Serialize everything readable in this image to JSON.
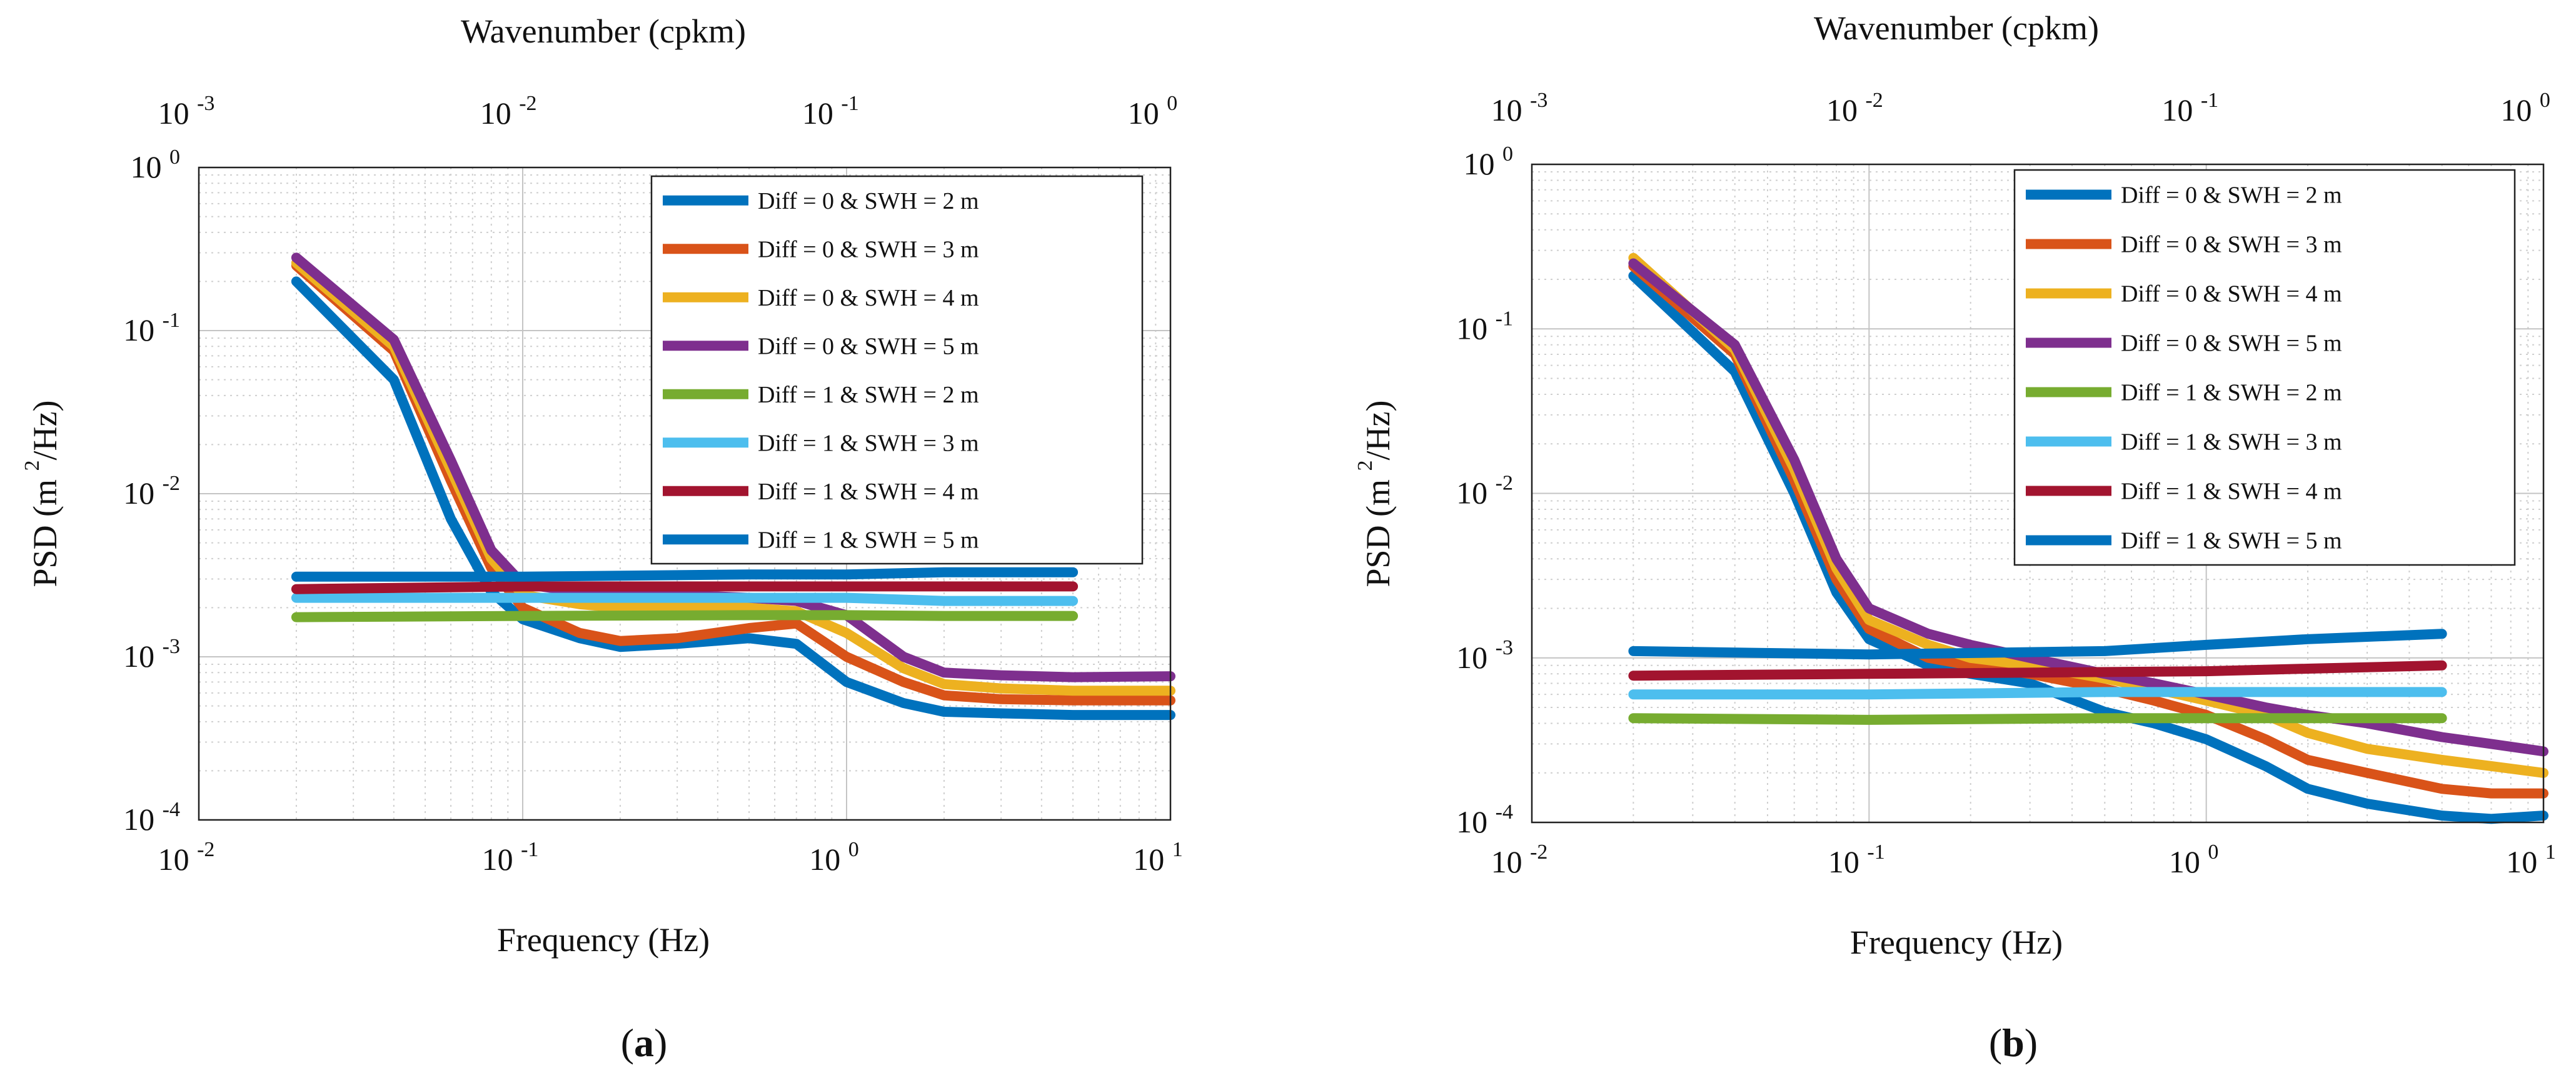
{
  "figure": {
    "panel_labels": [
      {
        "open": "(",
        "letter": "a",
        "close": ")"
      },
      {
        "open": "(",
        "letter": "b",
        "close": ")"
      }
    ]
  },
  "chart_data": [
    {
      "type": "line",
      "panel": "a",
      "xscale": "log",
      "yscale": "log",
      "xlabel": "Frequency (Hz)",
      "ylabel": "PSD (m 2 /Hz)",
      "ylabel_parts": {
        "main": "PSD (m",
        "sup": "2",
        "tail": "/Hz)"
      },
      "top_xlabel": "Wavenumber (cpkm)",
      "xlim": [
        0.01,
        10
      ],
      "ylim": [
        0.0001,
        1
      ],
      "grid": true,
      "x_ticks": [
        {
          "base": "10",
          "exp": "-2"
        },
        {
          "base": "10",
          "exp": "-1"
        },
        {
          "base": "10",
          "exp": "0"
        },
        {
          "base": "10",
          "exp": "1"
        }
      ],
      "y_ticks": [
        {
          "base": "10",
          "exp": "-4"
        },
        {
          "base": "10",
          "exp": "-3"
        },
        {
          "base": "10",
          "exp": "-2"
        },
        {
          "base": "10",
          "exp": "-1"
        },
        {
          "base": "10",
          "exp": "0"
        }
      ],
      "top_ticks": [
        {
          "base": "10",
          "exp": "-3"
        },
        {
          "base": "10",
          "exp": "-2"
        },
        {
          "base": "10",
          "exp": "-1"
        },
        {
          "base": "10",
          "exp": "0"
        }
      ],
      "legend_position": "top-right",
      "series": [
        {
          "name": "Diff = 0 & SWH = 2 m",
          "color": "#0072BD",
          "points": [
            [
              0.02,
              0.2
            ],
            [
              0.04,
              0.05
            ],
            [
              0.06,
              0.007
            ],
            [
              0.08,
              0.0025
            ],
            [
              0.1,
              0.0017
            ],
            [
              0.15,
              0.0013
            ],
            [
              0.2,
              0.00115
            ],
            [
              0.3,
              0.0012
            ],
            [
              0.5,
              0.0013
            ],
            [
              0.7,
              0.0012
            ],
            [
              1,
              0.0007
            ],
            [
              1.5,
              0.00052
            ],
            [
              2,
              0.00046
            ],
            [
              3,
              0.00045
            ],
            [
              5,
              0.00044
            ],
            [
              10,
              0.00044
            ]
          ]
        },
        {
          "name": "Diff = 0 & SWH = 3 m",
          "color": "#D95319",
          "points": [
            [
              0.02,
              0.25
            ],
            [
              0.04,
              0.075
            ],
            [
              0.06,
              0.012
            ],
            [
              0.08,
              0.0035
            ],
            [
              0.1,
              0.002
            ],
            [
              0.15,
              0.0014
            ],
            [
              0.2,
              0.00125
            ],
            [
              0.3,
              0.0013
            ],
            [
              0.5,
              0.0015
            ],
            [
              0.7,
              0.0016
            ],
            [
              1,
              0.001
            ],
            [
              1.5,
              0.0007
            ],
            [
              2,
              0.00058
            ],
            [
              3,
              0.00055
            ],
            [
              5,
              0.00054
            ],
            [
              10,
              0.00054
            ]
          ]
        },
        {
          "name": "Diff = 0 & SWH = 4 m",
          "color": "#EDB120",
          "points": [
            [
              0.02,
              0.26
            ],
            [
              0.04,
              0.08
            ],
            [
              0.06,
              0.014
            ],
            [
              0.08,
              0.004
            ],
            [
              0.1,
              0.0024
            ],
            [
              0.15,
              0.0021
            ],
            [
              0.2,
              0.002
            ],
            [
              0.3,
              0.002
            ],
            [
              0.5,
              0.002
            ],
            [
              0.7,
              0.0019
            ],
            [
              1,
              0.0014
            ],
            [
              1.5,
              0.00085
            ],
            [
              2,
              0.00068
            ],
            [
              3,
              0.00064
            ],
            [
              5,
              0.00062
            ],
            [
              10,
              0.00062
            ]
          ]
        },
        {
          "name": "Diff = 0 & SWH = 5 m",
          "color": "#7E2F8E",
          "points": [
            [
              0.02,
              0.28
            ],
            [
              0.04,
              0.088
            ],
            [
              0.06,
              0.016
            ],
            [
              0.08,
              0.0045
            ],
            [
              0.1,
              0.0028
            ],
            [
              0.15,
              0.0025
            ],
            [
              0.2,
              0.0024
            ],
            [
              0.3,
              0.0024
            ],
            [
              0.5,
              0.0023
            ],
            [
              0.7,
              0.0022
            ],
            [
              1,
              0.0018
            ],
            [
              1.5,
              0.001
            ],
            [
              2,
              0.0008
            ],
            [
              3,
              0.00077
            ],
            [
              5,
              0.00075
            ],
            [
              10,
              0.00076
            ]
          ]
        },
        {
          "name": "Diff = 1 & SWH = 2 m",
          "color": "#77AC30",
          "points": [
            [
              0.02,
              0.00175
            ],
            [
              0.1,
              0.00178
            ],
            [
              0.5,
              0.0018
            ],
            [
              1,
              0.0018
            ],
            [
              2,
              0.00178
            ],
            [
              5,
              0.00178
            ]
          ]
        },
        {
          "name": "Diff = 1 & SWH = 3 m",
          "color": "#4DBEEE",
          "points": [
            [
              0.02,
              0.0023
            ],
            [
              0.1,
              0.0023
            ],
            [
              0.5,
              0.0023
            ],
            [
              1,
              0.0023
            ],
            [
              2,
              0.0022
            ],
            [
              5,
              0.0022
            ]
          ]
        },
        {
          "name": "Diff = 1 & SWH = 4 m",
          "color": "#A2142F",
          "points": [
            [
              0.02,
              0.0026
            ],
            [
              0.1,
              0.0027
            ],
            [
              0.5,
              0.0027
            ],
            [
              1,
              0.0027
            ],
            [
              2,
              0.0027
            ],
            [
              5,
              0.0027
            ]
          ]
        },
        {
          "name": "Diff = 1 & SWH = 5 m",
          "color": "#0072BD",
          "points": [
            [
              0.02,
              0.0031
            ],
            [
              0.1,
              0.0031
            ],
            [
              0.5,
              0.0032
            ],
            [
              1,
              0.0032
            ],
            [
              2,
              0.0033
            ],
            [
              5,
              0.0033
            ]
          ]
        }
      ]
    },
    {
      "type": "line",
      "panel": "b",
      "xscale": "log",
      "yscale": "log",
      "xlabel": "Frequency (Hz)",
      "ylabel": "PSD (m 2 /Hz)",
      "ylabel_parts": {
        "main": "PSD (m",
        "sup": "2",
        "tail": "/Hz)"
      },
      "top_xlabel": "Wavenumber (cpkm)",
      "xlim": [
        0.01,
        10
      ],
      "ylim": [
        0.0001,
        1
      ],
      "grid": true,
      "x_ticks": [
        {
          "base": "10",
          "exp": "-2"
        },
        {
          "base": "10",
          "exp": "-1"
        },
        {
          "base": "10",
          "exp": "0"
        },
        {
          "base": "10",
          "exp": "1"
        }
      ],
      "y_ticks": [
        {
          "base": "10",
          "exp": "-4"
        },
        {
          "base": "10",
          "exp": "-3"
        },
        {
          "base": "10",
          "exp": "-2"
        },
        {
          "base": "10",
          "exp": "-1"
        },
        {
          "base": "10",
          "exp": "0"
        }
      ],
      "top_ticks": [
        {
          "base": "10",
          "exp": "-3"
        },
        {
          "base": "10",
          "exp": "-2"
        },
        {
          "base": "10",
          "exp": "-1"
        },
        {
          "base": "10",
          "exp": "0"
        }
      ],
      "legend_position": "top-right",
      "series": [
        {
          "name": "Diff = 0 & SWH = 2 m",
          "color": "#0072BD",
          "points": [
            [
              0.02,
              0.21
            ],
            [
              0.04,
              0.055
            ],
            [
              0.06,
              0.01
            ],
            [
              0.08,
              0.0025
            ],
            [
              0.1,
              0.0013
            ],
            [
              0.15,
              0.0009
            ],
            [
              0.2,
              0.0008
            ],
            [
              0.3,
              0.0007
            ],
            [
              0.5,
              0.00047
            ],
            [
              0.7,
              0.0004
            ],
            [
              1,
              0.00032
            ],
            [
              1.5,
              0.00022
            ],
            [
              2,
              0.00016
            ],
            [
              3,
              0.00013
            ],
            [
              5,
              0.00011
            ],
            [
              7,
              0.000105
            ],
            [
              10,
              0.00011
            ]
          ]
        },
        {
          "name": "Diff = 0 & SWH = 3 m",
          "color": "#D95319",
          "points": [
            [
              0.02,
              0.24
            ],
            [
              0.04,
              0.07
            ],
            [
              0.06,
              0.012
            ],
            [
              0.08,
              0.003
            ],
            [
              0.1,
              0.0015
            ],
            [
              0.15,
              0.001
            ],
            [
              0.2,
              0.0009
            ],
            [
              0.3,
              0.0008
            ],
            [
              0.5,
              0.00065
            ],
            [
              0.7,
              0.00055
            ],
            [
              1,
              0.00045
            ],
            [
              1.5,
              0.00032
            ],
            [
              2,
              0.00024
            ],
            [
              3,
              0.0002
            ],
            [
              5,
              0.00016
            ],
            [
              7,
              0.00015
            ],
            [
              10,
              0.00015
            ]
          ]
        },
        {
          "name": "Diff = 0 & SWH = 4 m",
          "color": "#EDB120",
          "points": [
            [
              0.02,
              0.27
            ],
            [
              0.04,
              0.075
            ],
            [
              0.06,
              0.014
            ],
            [
              0.08,
              0.0035
            ],
            [
              0.1,
              0.0017
            ],
            [
              0.15,
              0.0012
            ],
            [
              0.2,
              0.001
            ],
            [
              0.3,
              0.0009
            ],
            [
              0.5,
              0.00075
            ],
            [
              0.7,
              0.00065
            ],
            [
              1,
              0.00055
            ],
            [
              1.5,
              0.00045
            ],
            [
              2,
              0.00035
            ],
            [
              3,
              0.00028
            ],
            [
              5,
              0.00024
            ],
            [
              7,
              0.00022
            ],
            [
              10,
              0.0002
            ]
          ]
        },
        {
          "name": "Diff = 0 & SWH = 5 m",
          "color": "#7E2F8E",
          "points": [
            [
              0.02,
              0.25
            ],
            [
              0.04,
              0.08
            ],
            [
              0.06,
              0.016
            ],
            [
              0.08,
              0.004
            ],
            [
              0.1,
              0.002
            ],
            [
              0.15,
              0.0014
            ],
            [
              0.2,
              0.0012
            ],
            [
              0.3,
              0.001
            ],
            [
              0.5,
              0.0008
            ],
            [
              0.7,
              0.0007
            ],
            [
              1,
              0.0006
            ],
            [
              1.5,
              0.0005
            ],
            [
              2,
              0.00045
            ],
            [
              3,
              0.0004
            ],
            [
              5,
              0.00033
            ],
            [
              7,
              0.0003
            ],
            [
              10,
              0.00027
            ]
          ]
        },
        {
          "name": "Diff = 1 & SWH = 2 m",
          "color": "#77AC30",
          "points": [
            [
              0.02,
              0.00043
            ],
            [
              0.1,
              0.00042
            ],
            [
              0.5,
              0.00043
            ],
            [
              1,
              0.00043
            ],
            [
              2,
              0.00043
            ],
            [
              5,
              0.00043
            ]
          ]
        },
        {
          "name": "Diff = 1 & SWH = 3 m",
          "color": "#4DBEEE",
          "points": [
            [
              0.02,
              0.0006
            ],
            [
              0.1,
              0.0006
            ],
            [
              0.5,
              0.00062
            ],
            [
              1,
              0.00062
            ],
            [
              2,
              0.00062
            ],
            [
              5,
              0.00062
            ]
          ]
        },
        {
          "name": "Diff = 1 & SWH = 4 m",
          "color": "#A2142F",
          "points": [
            [
              0.02,
              0.00078
            ],
            [
              0.1,
              0.0008
            ],
            [
              0.5,
              0.00082
            ],
            [
              1,
              0.00083
            ],
            [
              2,
              0.00086
            ],
            [
              5,
              0.0009
            ]
          ]
        },
        {
          "name": "Diff = 1 & SWH = 5 m",
          "color": "#0072BD",
          "points": [
            [
              0.02,
              0.0011
            ],
            [
              0.1,
              0.00105
            ],
            [
              0.5,
              0.0011
            ],
            [
              1,
              0.0012
            ],
            [
              2,
              0.0013
            ],
            [
              5,
              0.0014
            ]
          ]
        }
      ]
    }
  ]
}
